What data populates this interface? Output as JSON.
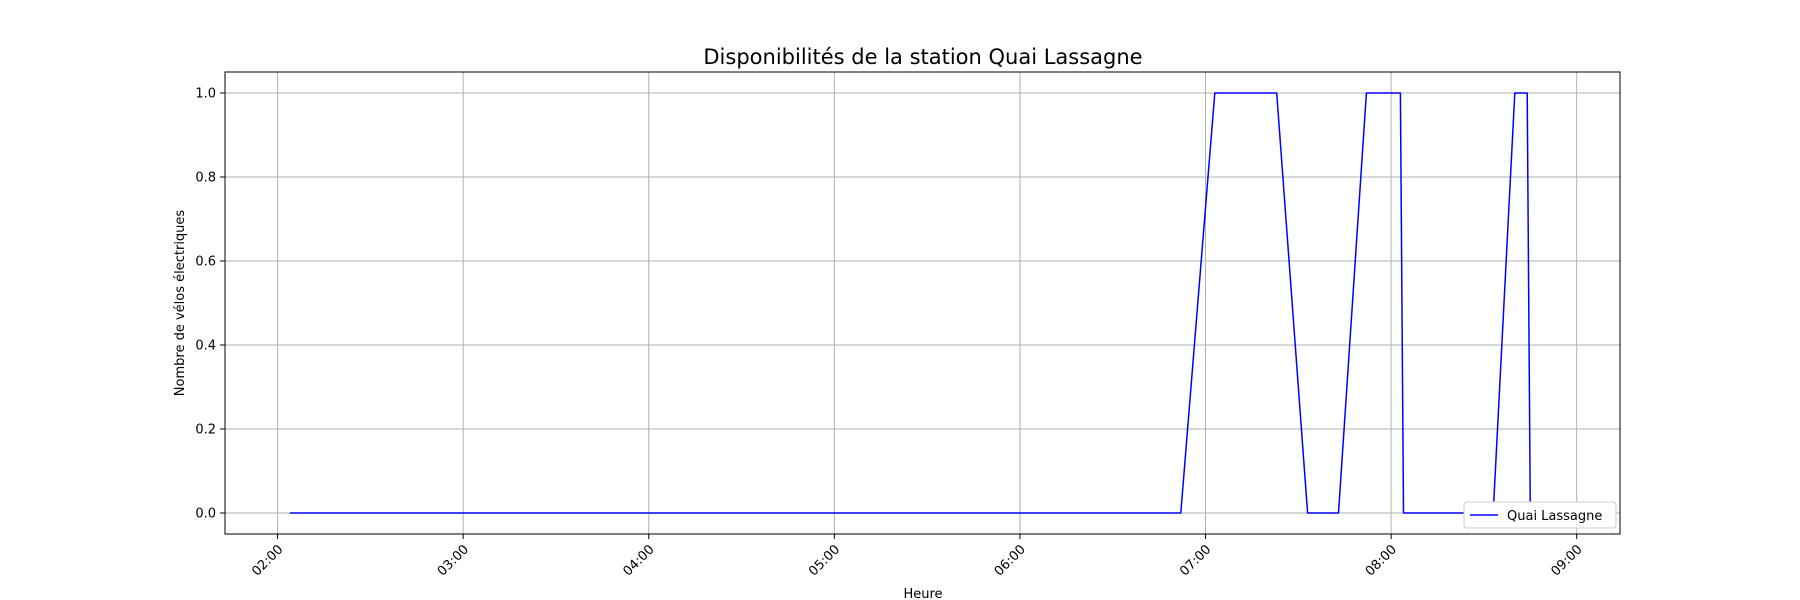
{
  "chart_data": {
    "type": "line",
    "title": "Disponibilités de la station Quai Lassagne",
    "xlabel": "Heure",
    "ylabel": "Nombre de vélos électriques",
    "x_ticks": [
      "02:00",
      "03:00",
      "04:00",
      "05:00",
      "06:00",
      "07:00",
      "08:00",
      "09:00"
    ],
    "y_ticks": [
      "0.0",
      "0.2",
      "0.4",
      "0.6",
      "0.8",
      "1.0"
    ],
    "xlim": [
      "01:43",
      "09:14"
    ],
    "ylim": [
      -0.05,
      1.05
    ],
    "grid": true,
    "legend_position": "lower-right",
    "series": [
      {
        "name": "Quai Lassagne",
        "color": "#0000ff",
        "points": [
          {
            "x": "02:04",
            "y": 0
          },
          {
            "x": "06:52",
            "y": 0
          },
          {
            "x": "07:03",
            "y": 1
          },
          {
            "x": "07:23",
            "y": 1
          },
          {
            "x": "07:33",
            "y": 0
          },
          {
            "x": "07:43",
            "y": 0
          },
          {
            "x": "07:52",
            "y": 1
          },
          {
            "x": "08:03",
            "y": 1
          },
          {
            "x": "08:04",
            "y": 0
          },
          {
            "x": "08:33",
            "y": 0
          },
          {
            "x": "08:40",
            "y": 1
          },
          {
            "x": "08:44",
            "y": 1
          },
          {
            "x": "08:45",
            "y": 0
          }
        ]
      }
    ]
  }
}
